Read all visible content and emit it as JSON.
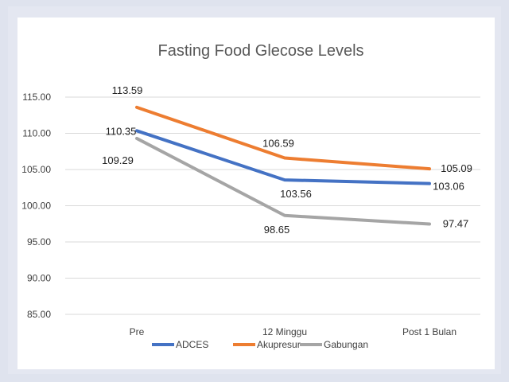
{
  "chart_data": {
    "type": "line",
    "title": "Fasting Food Glecose Levels",
    "xlabel": "",
    "ylabel": "",
    "categories": [
      "Pre",
      "12 Minggu",
      "Post 1 Bulan"
    ],
    "ylim": [
      85,
      115
    ],
    "yticks": [
      "85.00",
      "90.00",
      "95.00",
      "100.00",
      "105.00",
      "110.00",
      "115.00"
    ],
    "grid": true,
    "legend": "bottom",
    "series": [
      {
        "name": "ADCES",
        "color": "#4472c4",
        "values": [
          110.35,
          103.56,
          103.06
        ],
        "labels": [
          "110.35",
          "103.56",
          "103.06"
        ]
      },
      {
        "name": "Akupresur",
        "color": "#ed7d31",
        "values": [
          113.59,
          106.59,
          105.09
        ],
        "labels": [
          "113.59",
          "106.59",
          "105.09"
        ]
      },
      {
        "name": "Gabungan",
        "color": "#a5a5a5",
        "values": [
          109.29,
          98.65,
          97.47
        ],
        "labels": [
          "109.29",
          "98.65",
          "97.47"
        ]
      }
    ]
  }
}
